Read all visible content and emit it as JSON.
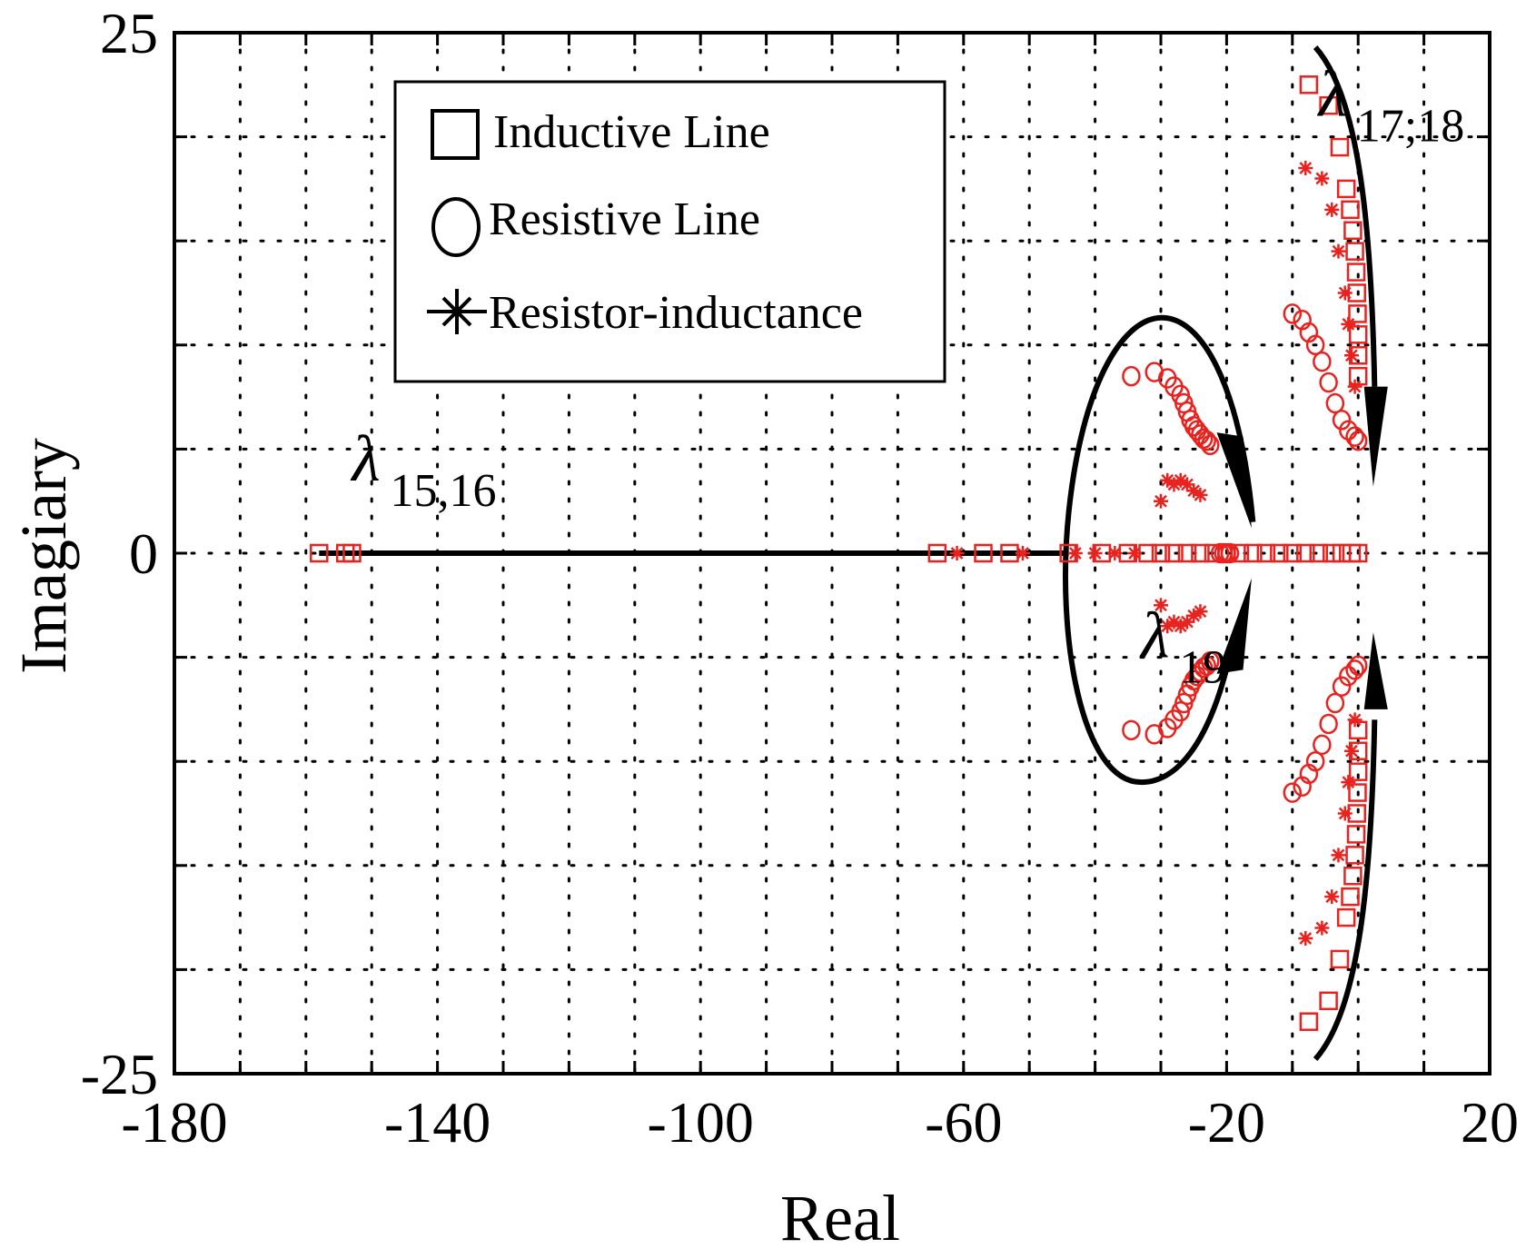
{
  "chart_data": {
    "type": "scatter",
    "title": "",
    "xlabel": "Real",
    "ylabel": "Imagiary",
    "xlim": [
      -180,
      20
    ],
    "ylim": [
      -25,
      25
    ],
    "xticks": [
      -180,
      -140,
      -100,
      -60,
      -20,
      20
    ],
    "xtick_labels": [
      "-180",
      "-140",
      "-100",
      "-60",
      "-20",
      "20"
    ],
    "yticks": [
      -25,
      0,
      25
    ],
    "ytick_labels": [
      "-25",
      "0",
      "25"
    ],
    "grid": true,
    "legend_position": "top-left",
    "marker_color": "#e8231f",
    "series": [
      {
        "name": "Inductive Line",
        "marker": "square",
        "points": [
          [
            -158,
            0
          ],
          [
            -154,
            0
          ],
          [
            -153,
            0
          ],
          [
            -64,
            0
          ],
          [
            -57,
            0
          ],
          [
            -53,
            0
          ],
          [
            -44,
            0
          ],
          [
            -39,
            0
          ],
          [
            -35,
            0
          ],
          [
            -32,
            0
          ],
          [
            -30,
            0
          ],
          [
            -28,
            0
          ],
          [
            -26,
            0
          ],
          [
            -24,
            0
          ],
          [
            -22,
            0
          ],
          [
            -20,
            0
          ],
          [
            -18,
            0
          ],
          [
            -16,
            0
          ],
          [
            -14,
            0
          ],
          [
            -12,
            0
          ],
          [
            -10,
            0
          ],
          [
            -8,
            0
          ],
          [
            -6,
            0
          ],
          [
            -4,
            0
          ],
          [
            -2.5,
            0
          ],
          [
            -1,
            0
          ],
          [
            0,
            0
          ],
          [
            -7.5,
            22.5
          ],
          [
            -4.5,
            21.5
          ],
          [
            -2.8,
            19.5
          ],
          [
            -1.8,
            17.5
          ],
          [
            -1.2,
            16.5
          ],
          [
            -0.8,
            15.5
          ],
          [
            -0.5,
            14.5
          ],
          [
            -0.3,
            13.5
          ],
          [
            -0.2,
            12.5
          ],
          [
            -0.1,
            11.5
          ],
          [
            0,
            10.5
          ],
          [
            0,
            9.5
          ],
          [
            0,
            8.5
          ],
          [
            -7.5,
            -22.5
          ],
          [
            -4.5,
            -21.5
          ],
          [
            -2.8,
            -19.5
          ],
          [
            -1.8,
            -17.5
          ],
          [
            -1.2,
            -16.5
          ],
          [
            -0.8,
            -15.5
          ],
          [
            -0.5,
            -14.5
          ],
          [
            -0.3,
            -13.5
          ],
          [
            -0.2,
            -12.5
          ],
          [
            -0.1,
            -11.5
          ],
          [
            0,
            -10.5
          ],
          [
            0,
            -9.5
          ],
          [
            0,
            -8.5
          ]
        ]
      },
      {
        "name": "Resistive Line",
        "marker": "circle",
        "points": [
          [
            -34.5,
            8.5
          ],
          [
            -31,
            8.7
          ],
          [
            -29,
            8.4
          ],
          [
            -28,
            8.0
          ],
          [
            -27,
            7.6
          ],
          [
            -26.5,
            7.2
          ],
          [
            -26,
            6.8
          ],
          [
            -25.5,
            6.4
          ],
          [
            -25,
            6.1
          ],
          [
            -24.5,
            5.9
          ],
          [
            -24,
            5.7
          ],
          [
            -23.5,
            5.5
          ],
          [
            -23,
            5.4
          ],
          [
            -22.5,
            5.2
          ],
          [
            -34.5,
            -8.5
          ],
          [
            -31,
            -8.7
          ],
          [
            -29,
            -8.4
          ],
          [
            -28,
            -8.0
          ],
          [
            -27,
            -7.6
          ],
          [
            -26.5,
            -7.2
          ],
          [
            -26,
            -6.8
          ],
          [
            -25.5,
            -6.4
          ],
          [
            -25,
            -6.1
          ],
          [
            -24.5,
            -5.9
          ],
          [
            -24,
            -5.7
          ],
          [
            -23.5,
            -5.5
          ],
          [
            -23,
            -5.4
          ],
          [
            -22.5,
            -5.2
          ],
          [
            -21,
            0
          ],
          [
            -20.5,
            0
          ],
          [
            -20,
            0
          ],
          [
            -19.5,
            0
          ],
          [
            -10,
            11.5
          ],
          [
            -8.5,
            11.2
          ],
          [
            -7.5,
            10.6
          ],
          [
            -6.5,
            10.0
          ],
          [
            -5.5,
            9.2
          ],
          [
            -4.5,
            8.2
          ],
          [
            -3.5,
            7.2
          ],
          [
            -2.5,
            6.4
          ],
          [
            -1.5,
            5.9
          ],
          [
            -0.5,
            5.6
          ],
          [
            0,
            5.4
          ],
          [
            -10,
            -11.5
          ],
          [
            -8.5,
            -11.2
          ],
          [
            -7.5,
            -10.6
          ],
          [
            -6.5,
            -10.0
          ],
          [
            -5.5,
            -9.2
          ],
          [
            -4.5,
            -8.2
          ],
          [
            -3.5,
            -7.2
          ],
          [
            -2.5,
            -6.4
          ],
          [
            -1.5,
            -5.9
          ],
          [
            -0.5,
            -5.6
          ],
          [
            0,
            -5.4
          ]
        ]
      },
      {
        "name": "Resistor-inductance",
        "marker": "star",
        "points": [
          [
            -61,
            0
          ],
          [
            -51,
            0
          ],
          [
            -43,
            0
          ],
          [
            -40,
            0
          ],
          [
            -37,
            0
          ],
          [
            -34,
            0
          ],
          [
            -30,
            2.5
          ],
          [
            -29,
            3.5
          ],
          [
            -28,
            3.3
          ],
          [
            -27,
            3.5
          ],
          [
            -26,
            3.3
          ],
          [
            -25,
            3.0
          ],
          [
            -24,
            2.8
          ],
          [
            -30,
            -2.5
          ],
          [
            -29,
            -3.5
          ],
          [
            -28,
            -3.3
          ],
          [
            -27,
            -3.5
          ],
          [
            -26,
            -3.3
          ],
          [
            -25,
            -3.0
          ],
          [
            -24,
            -2.8
          ],
          [
            -8,
            18.5
          ],
          [
            -5.5,
            18.0
          ],
          [
            -4,
            16.5
          ],
          [
            -3,
            14.5
          ],
          [
            -2,
            12.5
          ],
          [
            -1.5,
            11
          ],
          [
            -1,
            9.5
          ],
          [
            -0.5,
            8.0
          ],
          [
            -8,
            -18.5
          ],
          [
            -5.5,
            -18.0
          ],
          [
            -4,
            -16.5
          ],
          [
            -3,
            -14.5
          ],
          [
            -2,
            -12.5
          ],
          [
            -1.5,
            -11
          ],
          [
            -1,
            -9.5
          ],
          [
            -0.5,
            -8.0
          ]
        ]
      }
    ],
    "annotations": [
      {
        "text": "λ",
        "sub": "15,16",
        "x": -153,
        "y": 3.5
      },
      {
        "text": "λ",
        "sub": "17;18",
        "x": -6,
        "y": 21
      },
      {
        "text": "λ",
        "sub": "19",
        "x": -33,
        "y": -5
      }
    ]
  }
}
